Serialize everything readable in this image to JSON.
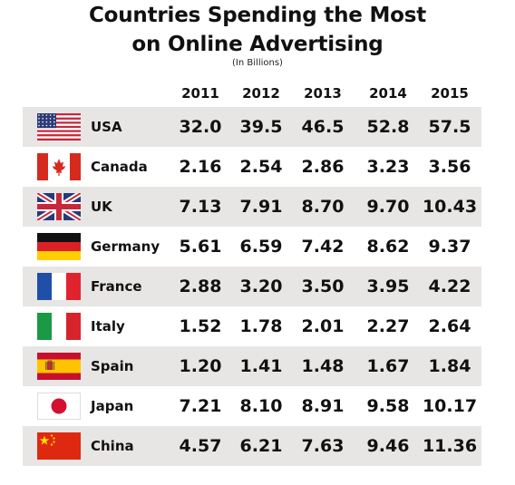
{
  "title_line1": "Countries Spending the Most",
  "title_line2": "on Online Advertising",
  "subtitle": "(In Billions)",
  "chart_data": {
    "type": "table",
    "title": "Countries Spending the Most on Online Advertising",
    "subtitle": "(In Billions)",
    "columns": [
      "2011",
      "2012",
      "2013",
      "2014",
      "2015"
    ],
    "rows": [
      {
        "country": "USA",
        "flag": "usa-flag",
        "values": [
          "32.0",
          "39.5",
          "46.5",
          "52.8",
          "57.5"
        ]
      },
      {
        "country": "Canada",
        "flag": "canada-flag",
        "values": [
          "2.16",
          "2.54",
          "2.86",
          "3.23",
          "3.56"
        ]
      },
      {
        "country": "UK",
        "flag": "uk-flag",
        "values": [
          "7.13",
          "7.91",
          "8.70",
          "9.70",
          "10.43"
        ]
      },
      {
        "country": "Germany",
        "flag": "germany-flag",
        "values": [
          "5.61",
          "6.59",
          "7.42",
          "8.62",
          "9.37"
        ]
      },
      {
        "country": "France",
        "flag": "france-flag",
        "values": [
          "2.88",
          "3.20",
          "3.50",
          "3.95",
          "4.22"
        ]
      },
      {
        "country": "Italy",
        "flag": "italy-flag",
        "values": [
          "1.52",
          "1.78",
          "2.01",
          "2.27",
          "2.64"
        ]
      },
      {
        "country": "Spain",
        "flag": "spain-flag",
        "values": [
          "1.20",
          "1.41",
          "1.48",
          "1.67",
          "1.84"
        ]
      },
      {
        "country": "Japan",
        "flag": "japan-flag",
        "values": [
          "7.21",
          "8.10",
          "8.91",
          "9.58",
          "10.17"
        ]
      },
      {
        "country": "China",
        "flag": "china-flag",
        "values": [
          "4.57",
          "6.21",
          "7.63",
          "9.46",
          "11.36"
        ]
      }
    ]
  }
}
